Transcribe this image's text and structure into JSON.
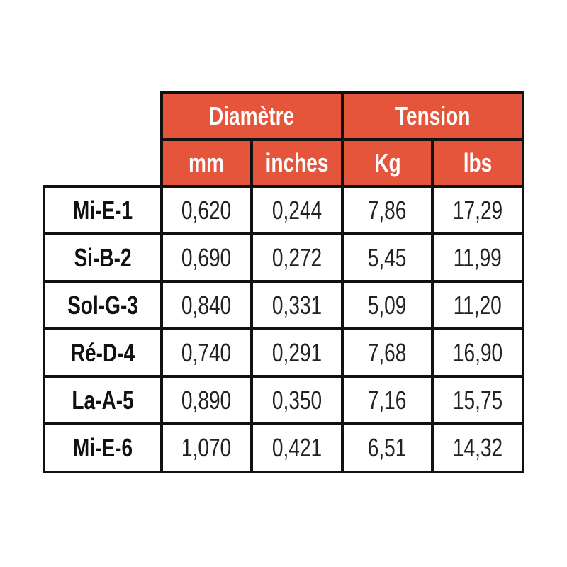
{
  "header": {
    "groups": [
      "Diamètre",
      "Tension"
    ],
    "units": [
      "mm",
      "inches",
      "Kg",
      "lbs"
    ]
  },
  "table": {
    "rows": [
      {
        "label": "Mi-E-1",
        "values": [
          "0,620",
          "0,244",
          "7,86",
          "17,29"
        ]
      },
      {
        "label": "Si-B-2",
        "values": [
          "0,690",
          "0,272",
          "5,45",
          "11,99"
        ]
      },
      {
        "label": "Sol-G-3",
        "values": [
          "0,840",
          "0,331",
          "5,09",
          "11,20"
        ]
      },
      {
        "label": "Ré-D-4",
        "values": [
          "0,740",
          "0,291",
          "7,68",
          "16,90"
        ]
      },
      {
        "label": "La-A-5",
        "values": [
          "0,890",
          "0,350",
          "7,16",
          "15,75"
        ]
      },
      {
        "label": "Mi-E-6",
        "values": [
          "1,070",
          "0,421",
          "6,51",
          "14,32"
        ]
      }
    ]
  }
}
